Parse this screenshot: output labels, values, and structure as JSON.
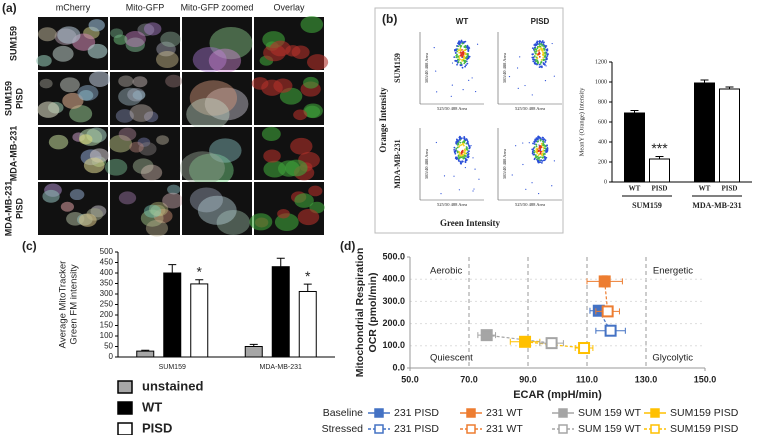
{
  "panel_labels": [
    "(a)",
    "(b)",
    "(c)",
    "(d)"
  ],
  "microscopy": {
    "columns": [
      "mCherry",
      "Mito-GFP",
      "Mito-GFP zoomed",
      "Overlay"
    ],
    "rows": [
      [
        "SUM159"
      ],
      [
        "SUM159",
        "PISD"
      ],
      [
        "MDA-MB-231"
      ],
      [
        "MDA-MB-231",
        "PISD"
      ]
    ]
  },
  "flow": {
    "columns": [
      "WT",
      "PISD"
    ],
    "rows": [
      "SUM159",
      "MDA-MB-231"
    ],
    "y_label": "Orange Intensity",
    "x_label": "Green Intensity",
    "plot_y_label": "585/40 488 Area",
    "plot_x_label": "525/50 488 Area"
  },
  "chart_data": [
    {
      "type": "bar",
      "y_label": "MeanY (Orange) Intensity",
      "categories": [
        "SUM159",
        "MDA-MB-231"
      ],
      "series": [
        {
          "name": "WT",
          "color": "#000000",
          "values": [
            690,
            990
          ],
          "errors": [
            25,
            30
          ]
        },
        {
          "name": "PISD",
          "color": "#ffffff",
          "values": [
            230,
            930
          ],
          "errors": [
            25,
            20
          ],
          "significance": [
            "***",
            null
          ]
        }
      ],
      "ylim": [
        0,
        1200
      ],
      "yticks": [
        0,
        200,
        400,
        600,
        800,
        1000,
        1200
      ],
      "legend": "below-bars"
    },
    {
      "type": "bar",
      "y_label": [
        "Average MitoTracker",
        "Green FM intensity"
      ],
      "categories": [
        "SUM159",
        "MDA-MB-231"
      ],
      "series": [
        {
          "name": "unstained",
          "color": "#a6a6a6",
          "values": [
            28,
            50
          ],
          "errors": [
            4,
            10
          ]
        },
        {
          "name": "WT",
          "color": "#000000",
          "values": [
            400,
            430
          ],
          "errors": [
            40,
            40
          ]
        },
        {
          "name": "PISD",
          "color": "#ffffff",
          "values": [
            348,
            312
          ],
          "errors": [
            20,
            35
          ],
          "significance": [
            "*",
            "*"
          ]
        }
      ],
      "ylim": [
        0,
        500
      ],
      "yticks": [
        0,
        50,
        100,
        150,
        200,
        250,
        300,
        350,
        400,
        450,
        500
      ],
      "legend": "bottom"
    },
    {
      "type": "scatter",
      "x_label": "ECAR (mpH/min)",
      "y_label": [
        "Mitochondrial Respiration",
        "OCR (pmol/min)"
      ],
      "quadrant_labels": {
        "top_left": "Aerobic",
        "top_right": "Energetic",
        "bottom_left": "Quiescent",
        "bottom_right": "Glycolytic"
      },
      "xlim": [
        50,
        150
      ],
      "xticks": [
        {
          "value": 50,
          "label": "50.0"
        },
        {
          "value": 70,
          "label": "70.0"
        },
        {
          "value": 90,
          "label": "90.0"
        },
        {
          "value": 110,
          "label": "110.0"
        },
        {
          "value": 130,
          "label": "130.0"
        },
        {
          "value": 150,
          "label": "150.0"
        }
      ],
      "ylim": [
        0,
        500
      ],
      "yticks": [
        {
          "value": 0,
          "label": "0.0"
        },
        {
          "value": 100,
          "label": "100.0"
        },
        {
          "value": 200,
          "label": "200.0"
        },
        {
          "value": 300,
          "label": "300.0"
        },
        {
          "value": 400,
          "label": "400.0"
        },
        {
          "value": 500,
          "label": "500.0"
        }
      ],
      "grid": true,
      "series": [
        {
          "name": "231 PISD",
          "group": "Baseline",
          "color": "#4472c4",
          "filled": true,
          "x": [
            114
          ],
          "y": [
            258
          ],
          "xerr": [
            3
          ],
          "yerr": [
            20
          ]
        },
        {
          "name": "231 WT",
          "group": "Baseline",
          "color": "#ed7d31",
          "filled": true,
          "x": [
            116
          ],
          "y": [
            390
          ],
          "xerr": [
            6
          ],
          "yerr": [
            25
          ]
        },
        {
          "name": "SUM 159 WT",
          "group": "Baseline",
          "color": "#a5a5a5",
          "filled": true,
          "x": [
            76
          ],
          "y": [
            148
          ],
          "xerr": [
            3
          ],
          "yerr": [
            10
          ]
        },
        {
          "name": "SUM159 PISD",
          "group": "Baseline",
          "color": "#ffc000",
          "filled": true,
          "x": [
            89
          ],
          "y": [
            118
          ],
          "xerr": [
            5
          ],
          "yerr": [
            8
          ]
        },
        {
          "name": "231 PISD",
          "group": "Stressed",
          "color": "#4472c4",
          "filled": false,
          "x": [
            118
          ],
          "y": [
            168
          ],
          "xerr": [
            5
          ],
          "yerr": [
            15
          ]
        },
        {
          "name": "231 WT",
          "group": "Stressed",
          "color": "#ed7d31",
          "filled": false,
          "x": [
            117
          ],
          "y": [
            255
          ],
          "xerr": [
            4
          ],
          "yerr": [
            15
          ]
        },
        {
          "name": "SUM 159 WT",
          "group": "Stressed",
          "color": "#a5a5a5",
          "filled": false,
          "x": [
            98
          ],
          "y": [
            112
          ],
          "xerr": [
            4
          ],
          "yerr": [
            8
          ]
        },
        {
          "name": "SUM159 PISD",
          "group": "Stressed",
          "color": "#ffc000",
          "filled": false,
          "x": [
            109
          ],
          "y": [
            90
          ],
          "xerr": [
            3
          ],
          "yerr": [
            8
          ]
        }
      ]
    }
  ]
}
